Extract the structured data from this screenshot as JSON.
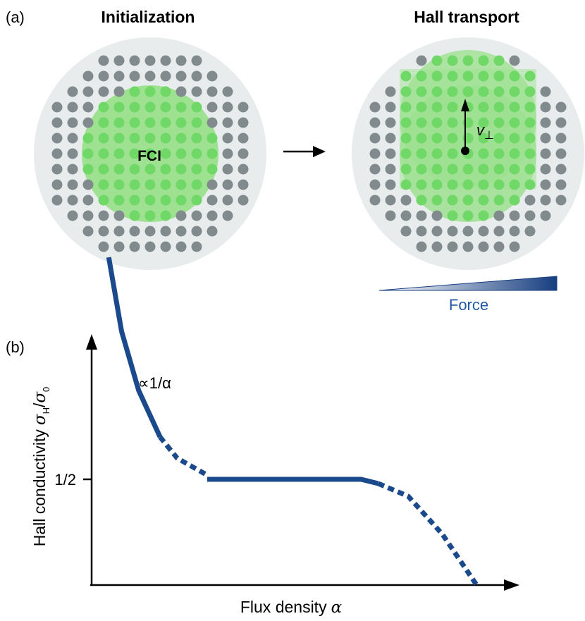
{
  "panel_a": {
    "label": "(a)",
    "left_title": "Initialization",
    "right_title": "Hall transport",
    "fci_label": "FCI",
    "velocity_label": "v",
    "velocity_subscript": "⊥",
    "force_label": "Force"
  },
  "panel_b": {
    "label": "(b)",
    "xlabel": "Flux density",
    "xlabel_symbol": "α",
    "ylabel": "Hall conductivity",
    "ylabel_symbol": "σ",
    "ylabel_sub_h": "H",
    "ylabel_slash": "/",
    "ylabel_sub_0": "0",
    "ytick": "1/2",
    "annotation": "∝1/α"
  },
  "colors": {
    "dot": "#818b8d",
    "dot_in_cloud": "#6fd866",
    "disk": "#e9ecec",
    "cloud": "#8fdd84",
    "curve": "#1a4a8c",
    "force_text": "#1f5aa6"
  },
  "chart_data": {
    "type": "line",
    "title": "",
    "xlabel": "Flux density α",
    "ylabel": "Hall conductivity σH/σ0",
    "yticks": [
      "1/2"
    ],
    "series": [
      {
        "segments": [
          {
            "style": "solid",
            "x": [
              0.04,
              0.07,
              0.11,
              0.16
            ],
            "y": [
              1.55,
              1.2,
              0.92,
              0.7
            ]
          },
          {
            "style": "dashed",
            "x": [
              0.16,
              0.2,
              0.27
            ],
            "y": [
              0.7,
              0.6,
              0.52
            ]
          },
          {
            "style": "solid",
            "x": [
              0.27,
              0.45,
              0.63,
              0.67
            ],
            "y": [
              0.5,
              0.5,
              0.5,
              0.48
            ]
          },
          {
            "style": "dashed",
            "x": [
              0.67,
              0.74,
              0.82,
              0.9
            ],
            "y": [
              0.48,
              0.42,
              0.24,
              0.0
            ]
          }
        ]
      }
    ]
  }
}
